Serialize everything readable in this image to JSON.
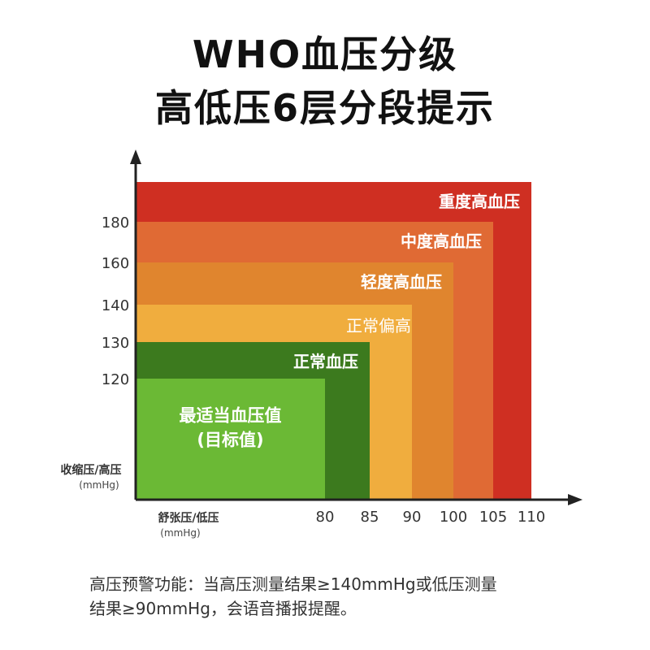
{
  "title_line1": "WHO血压分级",
  "title_line2": "高低压6层分段提示",
  "footer_line1": "高压预警功能：当高压测量结果≥140mmHg或低压测量",
  "footer_line2": "结果≥90mmHg，会语音播报提醒。",
  "chart_data": {
    "type": "area",
    "y_axis": {
      "label": "收缩压/高压",
      "unit": "(mmHg)",
      "ticks": [
        120,
        130,
        140,
        160,
        180
      ]
    },
    "x_axis": {
      "label": "舒张压/低压",
      "unit": "(mmHg)",
      "ticks": [
        80,
        85,
        90,
        100,
        105,
        110
      ]
    },
    "regions": [
      {
        "label": "重度高血压",
        "dia_max": 110,
        "sys_max": 190,
        "color": "#cf2f22",
        "text_color": "#ffffff"
      },
      {
        "label": "中度高血压",
        "dia_max": 105,
        "sys_max": 180,
        "color": "#e06a34",
        "text_color": "#ffffff"
      },
      {
        "label": "轻度高血压",
        "dia_max": 100,
        "sys_max": 160,
        "color": "#e0852e",
        "text_color": "#ffffff"
      },
      {
        "label": "正常偏高",
        "dia_max": 90,
        "sys_max": 140,
        "color": "#f0ad3e",
        "text_color": "#ffffff"
      },
      {
        "label": "正常血压",
        "dia_max": 85,
        "sys_max": 130,
        "color": "#3c7a1e",
        "text_color": "#ffffff"
      },
      {
        "label": "最适当血压值",
        "label2": "(目标值)",
        "dia_max": 80,
        "sys_max": 120,
        "color": "#6bb935",
        "text_color": "#ffffff"
      }
    ]
  }
}
